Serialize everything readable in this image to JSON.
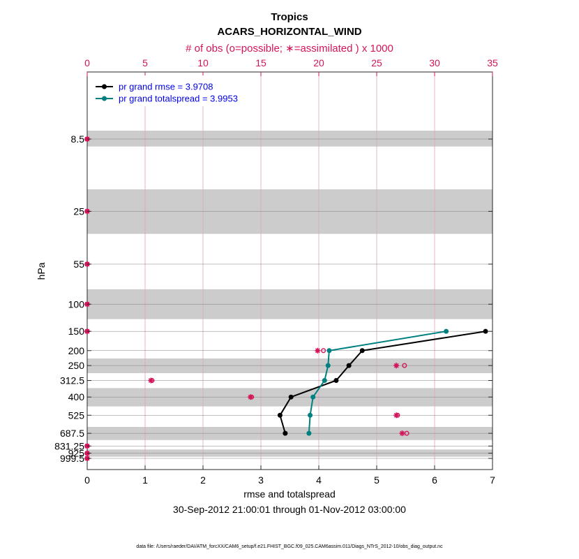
{
  "chart_data": {
    "type": "line",
    "title": "Tropics",
    "subtitle": "ACARS_HORIZONTAL_WIND",
    "top_axis": {
      "label": "# of obs (o=possible; ∗=assimilated ) x 1000",
      "range": [
        0,
        35
      ],
      "ticks": [
        "0",
        "5",
        "10",
        "15",
        "20",
        "25",
        "30",
        "35"
      ],
      "color": "#d4145a"
    },
    "xlabel": "rmse and totalspread",
    "xlim": [
      0,
      7
    ],
    "xticks": [
      "0",
      "1",
      "2",
      "3",
      "4",
      "5",
      "6",
      "7"
    ],
    "ylabel": "hPa",
    "y_levels": [
      "8.5",
      "25",
      "55",
      "100",
      "150",
      "200",
      "250",
      "312.5",
      "400",
      "525",
      "687.5",
      "831.25",
      "925",
      "999.5"
    ],
    "y_scale": "log",
    "y_reversed": true,
    "ylim": [
      5,
      1025
    ],
    "shaded_layers": [
      [
        7.5,
        9.5
      ],
      [
        18,
        35
      ],
      [
        80,
        125
      ],
      [
        225,
        280
      ],
      [
        350,
        460
      ],
      [
        625,
        760
      ],
      [
        875,
        975
      ]
    ],
    "grid": true,
    "series": [
      {
        "name": "pr grand rmse = 3.9708",
        "color": "#000000",
        "points": [
          [
            6.88,
            150
          ],
          [
            4.75,
            200
          ],
          [
            4.52,
            250
          ],
          [
            4.3,
            312.5
          ],
          [
            3.52,
            400
          ],
          [
            3.33,
            525
          ],
          [
            3.42,
            687.5
          ]
        ]
      },
      {
        "name": "pr grand totalspread = 3.9953",
        "color": "#008080",
        "points": [
          [
            6.2,
            150
          ],
          [
            4.18,
            200
          ],
          [
            4.16,
            250
          ],
          [
            4.1,
            312.5
          ],
          [
            3.9,
            400
          ],
          [
            3.85,
            525
          ],
          [
            3.83,
            687.5
          ]
        ]
      }
    ],
    "obs_counts_thousands": {
      "levels": [
        "8.5",
        "25",
        "55",
        "100",
        "150",
        "200",
        "250",
        "312.5",
        "400",
        "525",
        "687.5",
        "831.25",
        "925",
        "999.5"
      ],
      "possible": [
        0,
        0,
        0,
        0,
        0,
        20.4,
        27.4,
        5.6,
        14.2,
        26.8,
        27.6,
        0,
        0,
        0
      ],
      "assimilated": [
        0,
        0,
        0,
        0,
        0,
        19.9,
        26.7,
        5.5,
        14.1,
        26.7,
        27.2,
        0,
        0,
        0
      ]
    },
    "legend": {
      "location": "top-left",
      "entries": [
        "pr grand rmse = 3.9708",
        "pr grand totalspread = 3.9953"
      ]
    },
    "time_range": "30-Sep-2012 21:00:01 through 01-Nov-2012 03:00:00",
    "footnote": "data file: /Users/raeder/DAI/ATM_forcXX/CAM6_setup/f.e21.FHIST_BGC.f09_025.CAM6assim.011/Diags_NTrS_2012-10/obs_diag_output.nc"
  }
}
